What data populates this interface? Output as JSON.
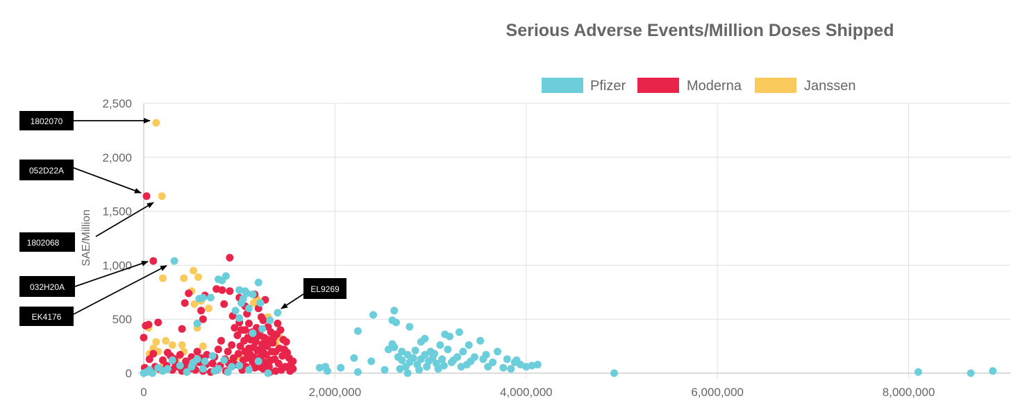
{
  "colors": {
    "Pfizer": "#6CCDDB",
    "Moderna": "#E8244A",
    "Janssen": "#FACB5C",
    "text": "#666666",
    "grid": "#e0e0e0"
  },
  "chart_data": {
    "type": "scatter",
    "title": "Serious Adverse Events/Million Doses Shipped",
    "xlabel": "",
    "ylabel": "SAE/Million",
    "xlim": [
      0,
      9000000
    ],
    "ylim": [
      0,
      2500
    ],
    "x_ticks": [
      0,
      2000000,
      4000000,
      6000000,
      8000000
    ],
    "x_tick_labels": [
      "0",
      "2,000,000",
      "4,000,000",
      "6,000,000",
      "8,000,000"
    ],
    "y_ticks": [
      0,
      500,
      1000,
      1500,
      2000,
      2500
    ],
    "y_tick_labels": [
      "0",
      "500",
      "1,000",
      "1,500",
      "2,000",
      "2,500"
    ],
    "grid": true,
    "legend_position": "top",
    "legend": [
      "Pfizer",
      "Moderna",
      "Janssen"
    ],
    "series": [
      {
        "name": "Janssen",
        "points": [
          [
            130000,
            2320
          ],
          [
            190000,
            1640
          ],
          [
            200000,
            880
          ],
          [
            50000,
            420
          ],
          [
            130000,
            290
          ],
          [
            230000,
            300
          ],
          [
            300000,
            260
          ],
          [
            400000,
            260
          ],
          [
            60000,
            180
          ],
          [
            150000,
            200
          ],
          [
            100000,
            230
          ],
          [
            520000,
            950
          ],
          [
            420000,
            880
          ],
          [
            570000,
            890
          ],
          [
            500000,
            760
          ],
          [
            530000,
            640
          ],
          [
            600000,
            670
          ],
          [
            680000,
            600
          ],
          [
            620000,
            250
          ],
          [
            420000,
            200
          ],
          [
            560000,
            420
          ],
          [
            1150000,
            650
          ],
          [
            1180000,
            690
          ],
          [
            1420000,
            330
          ],
          [
            1380000,
            280
          ],
          [
            900000,
            110
          ],
          [
            1000000,
            150
          ],
          [
            350000,
            140
          ],
          [
            200000,
            60
          ],
          [
            1300000,
            520
          ]
        ]
      },
      {
        "name": "Moderna",
        "points": [
          [
            30000,
            1640
          ],
          [
            100000,
            1040
          ],
          [
            900000,
            1070
          ],
          [
            0,
            330
          ],
          [
            20000,
            440
          ],
          [
            50000,
            450
          ],
          [
            150000,
            470
          ],
          [
            400000,
            410
          ],
          [
            620000,
            500
          ],
          [
            430000,
            650
          ],
          [
            470000,
            740
          ],
          [
            600000,
            580
          ],
          [
            640000,
            720
          ],
          [
            760000,
            780
          ],
          [
            820000,
            770
          ],
          [
            840000,
            640
          ],
          [
            900000,
            760
          ],
          [
            930000,
            530
          ],
          [
            1000000,
            700
          ],
          [
            1060000,
            620
          ],
          [
            1080000,
            550
          ],
          [
            1100000,
            460
          ],
          [
            1160000,
            730
          ],
          [
            1200000,
            600
          ],
          [
            1230000,
            520
          ],
          [
            1250000,
            490
          ],
          [
            1270000,
            680
          ],
          [
            1300000,
            430
          ],
          [
            1330000,
            380
          ],
          [
            1360000,
            330
          ],
          [
            1400000,
            460
          ],
          [
            1430000,
            400
          ],
          [
            1460000,
            310
          ],
          [
            1470000,
            220
          ],
          [
            1500000,
            190
          ],
          [
            1520000,
            140
          ],
          [
            1540000,
            80
          ],
          [
            1560000,
            40
          ],
          [
            1530000,
            20
          ],
          [
            1560000,
            110
          ],
          [
            1480000,
            60
          ],
          [
            1440000,
            30
          ],
          [
            1380000,
            20
          ],
          [
            1320000,
            10
          ],
          [
            1250000,
            40
          ],
          [
            1200000,
            90
          ],
          [
            1150000,
            150
          ],
          [
            1100000,
            230
          ],
          [
            1050000,
            300
          ],
          [
            980000,
            350
          ],
          [
            950000,
            420
          ],
          [
            920000,
            260
          ],
          [
            880000,
            200
          ],
          [
            850000,
            130
          ],
          [
            800000,
            70
          ],
          [
            760000,
            30
          ],
          [
            700000,
            10
          ],
          [
            650000,
            80
          ],
          [
            600000,
            140
          ],
          [
            560000,
            200
          ],
          [
            520000,
            90
          ],
          [
            480000,
            40
          ],
          [
            440000,
            110
          ],
          [
            400000,
            20
          ],
          [
            360000,
            60
          ],
          [
            320000,
            130
          ],
          [
            280000,
            160
          ],
          [
            240000,
            70
          ],
          [
            200000,
            120
          ],
          [
            160000,
            40
          ],
          [
            120000,
            60
          ],
          [
            80000,
            10
          ],
          [
            40000,
            30
          ],
          [
            10000,
            50
          ],
          [
            100000,
            180
          ],
          [
            60000,
            130
          ],
          [
            250000,
            190
          ],
          [
            300000,
            30
          ],
          [
            330000,
            90
          ],
          [
            380000,
            170
          ],
          [
            450000,
            60
          ],
          [
            500000,
            150
          ],
          [
            540000,
            30
          ],
          [
            580000,
            100
          ],
          [
            620000,
            20
          ],
          [
            660000,
            170
          ],
          [
            720000,
            90
          ],
          [
            740000,
            150
          ],
          [
            780000,
            220
          ],
          [
            810000,
            300
          ],
          [
            860000,
            20
          ],
          [
            890000,
            90
          ],
          [
            960000,
            80
          ],
          [
            990000,
            180
          ],
          [
            1010000,
            250
          ],
          [
            1020000,
            400
          ],
          [
            1040000,
            120
          ],
          [
            1070000,
            60
          ],
          [
            1090000,
            330
          ],
          [
            1110000,
            180
          ],
          [
            1130000,
            380
          ],
          [
            1140000,
            100
          ],
          [
            1170000,
            290
          ],
          [
            1190000,
            210
          ],
          [
            1210000,
            370
          ],
          [
            1220000,
            150
          ],
          [
            1240000,
            270
          ],
          [
            1260000,
            330
          ],
          [
            1280000,
            170
          ],
          [
            1290000,
            250
          ],
          [
            1310000,
            60
          ],
          [
            1340000,
            200
          ],
          [
            1350000,
            280
          ],
          [
            1370000,
            130
          ],
          [
            1390000,
            360
          ],
          [
            1410000,
            90
          ],
          [
            1420000,
            230
          ],
          [
            1450000,
            160
          ],
          [
            1490000,
            290
          ],
          [
            1510000,
            60
          ],
          [
            1000000,
            470
          ],
          [
            1060000,
            400
          ],
          [
            1120000,
            310
          ],
          [
            1180000,
            420
          ],
          [
            1230000,
            230
          ],
          [
            1300000,
            310
          ],
          [
            1060000,
            200
          ],
          [
            1160000,
            50
          ],
          [
            1270000,
            100
          ],
          [
            1380000,
            200
          ],
          [
            1150000,
            240
          ],
          [
            1210000,
            60
          ],
          [
            940000,
            140
          ],
          [
            1030000,
            30
          ],
          [
            1080000,
            140
          ],
          [
            1190000,
            340
          ],
          [
            1250000,
            190
          ],
          [
            1330000,
            120
          ]
        ]
      },
      {
        "name": "Pfizer",
        "points": [
          [
            320000,
            1040
          ],
          [
            860000,
            900
          ],
          [
            780000,
            870
          ],
          [
            820000,
            860
          ],
          [
            1200000,
            840
          ],
          [
            1060000,
            760
          ],
          [
            1000000,
            770
          ],
          [
            1080000,
            740
          ],
          [
            1140000,
            730
          ],
          [
            1040000,
            690
          ],
          [
            620000,
            700
          ],
          [
            580000,
            690
          ],
          [
            700000,
            700
          ],
          [
            1020000,
            650
          ],
          [
            1220000,
            650
          ],
          [
            1400000,
            560
          ],
          [
            1000000,
            510
          ],
          [
            1320000,
            490
          ],
          [
            560000,
            460
          ],
          [
            2240000,
            390
          ],
          [
            2400000,
            540
          ],
          [
            2620000,
            580
          ],
          [
            2600000,
            490
          ],
          [
            2640000,
            470
          ],
          [
            2780000,
            430
          ],
          [
            2600000,
            270
          ],
          [
            2620000,
            240
          ],
          [
            2700000,
            200
          ],
          [
            2660000,
            150
          ],
          [
            2560000,
            220
          ],
          [
            2900000,
            290
          ],
          [
            2940000,
            320
          ],
          [
            3000000,
            200
          ],
          [
            3100000,
            260
          ],
          [
            3150000,
            360
          ],
          [
            3200000,
            340
          ],
          [
            3300000,
            380
          ],
          [
            3400000,
            260
          ],
          [
            3520000,
            300
          ],
          [
            3580000,
            170
          ],
          [
            3700000,
            200
          ],
          [
            3800000,
            130
          ],
          [
            3880000,
            100
          ],
          [
            3940000,
            80
          ],
          [
            4000000,
            60
          ],
          [
            4060000,
            70
          ],
          [
            4120000,
            80
          ],
          [
            3900000,
            120
          ],
          [
            3760000,
            50
          ],
          [
            3650000,
            100
          ],
          [
            3550000,
            130
          ],
          [
            3460000,
            150
          ],
          [
            3380000,
            80
          ],
          [
            3340000,
            200
          ],
          [
            3280000,
            150
          ],
          [
            3220000,
            100
          ],
          [
            3180000,
            220
          ],
          [
            3120000,
            130
          ],
          [
            3060000,
            90
          ],
          [
            3020000,
            140
          ],
          [
            2980000,
            110
          ],
          [
            2940000,
            170
          ],
          [
            2900000,
            130
          ],
          [
            2860000,
            80
          ],
          [
            2820000,
            140
          ],
          [
            2780000,
            100
          ],
          [
            2740000,
            60
          ],
          [
            2700000,
            120
          ],
          [
            2680000,
            40
          ],
          [
            2760000,
            170
          ],
          [
            2840000,
            210
          ],
          [
            2880000,
            30
          ],
          [
            2960000,
            60
          ],
          [
            3040000,
            180
          ],
          [
            3080000,
            40
          ],
          [
            3140000,
            70
          ],
          [
            3240000,
            120
          ],
          [
            3320000,
            60
          ],
          [
            3420000,
            110
          ],
          [
            3600000,
            60
          ],
          [
            3840000,
            40
          ],
          [
            2200000,
            140
          ],
          [
            2240000,
            10
          ],
          [
            2520000,
            30
          ],
          [
            2380000,
            110
          ],
          [
            2060000,
            50
          ],
          [
            1900000,
            60
          ],
          [
            1920000,
            20
          ],
          [
            1840000,
            50
          ],
          [
            2760000,
            0
          ],
          [
            4920000,
            0
          ],
          [
            8100000,
            10
          ],
          [
            8650000,
            0
          ],
          [
            8880000,
            20
          ],
          [
            0,
            0
          ],
          [
            30000,
            10
          ],
          [
            60000,
            30
          ],
          [
            90000,
            0
          ],
          [
            150000,
            50
          ],
          [
            200000,
            20
          ],
          [
            250000,
            40
          ],
          [
            300000,
            120
          ],
          [
            380000,
            70
          ],
          [
            450000,
            10
          ],
          [
            500000,
            60
          ],
          [
            560000,
            130
          ],
          [
            640000,
            110
          ],
          [
            720000,
            160
          ],
          [
            780000,
            40
          ],
          [
            840000,
            120
          ],
          [
            880000,
            10
          ],
          [
            920000,
            60
          ],
          [
            1000000,
            70
          ],
          [
            1100000,
            30
          ],
          [
            1200000,
            110
          ],
          [
            1300000,
            0
          ],
          [
            1240000,
            410
          ],
          [
            1140000,
            370
          ],
          [
            1100000,
            600
          ],
          [
            960000,
            580
          ],
          [
            740000,
            20
          ],
          [
            520000,
            100
          ],
          [
            620000,
            40
          ]
        ]
      }
    ]
  },
  "annotations": [
    {
      "label": "1802070"
    },
    {
      "label": "052D22A"
    },
    {
      "label": "1802068"
    },
    {
      "label": "032H20A"
    },
    {
      "label": "EK4176"
    },
    {
      "label": "EL9269"
    }
  ]
}
